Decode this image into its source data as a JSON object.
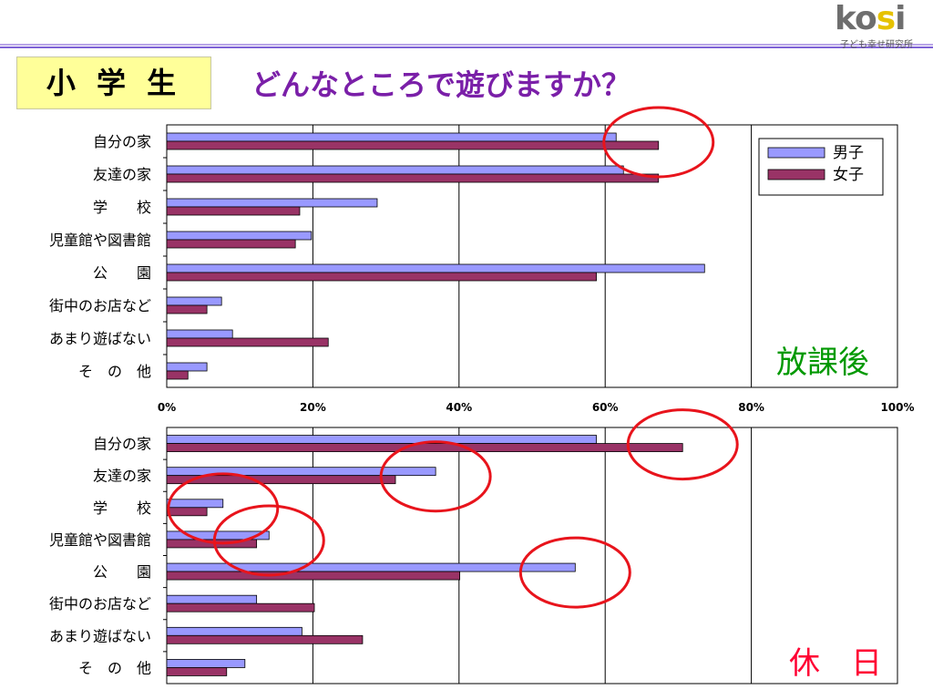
{
  "logo": {
    "text_main_a": "ko",
    "text_main_s": "s",
    "text_main_b": "i",
    "subtitle": "子ども幸せ研究所"
  },
  "grade_label": "小 学 生",
  "question": "どんなところで遊びますか？",
  "colors": {
    "boys": "#9999ff",
    "girls": "#993366",
    "highlight_circle": "#e8141c"
  },
  "chart_data": [
    {
      "type": "bar",
      "orientation": "horizontal",
      "panel_label": "放課後",
      "categories": [
        "自分の家",
        "友達の家",
        "学　　校",
        "児童館や図書館",
        "公　　園",
        "街中のお店など",
        "あまり遊ばない",
        "そ　の　他"
      ],
      "series": [
        {
          "name": "男子",
          "values": [
            61.5,
            62.5,
            28.8,
            19.8,
            73.6,
            7.5,
            9.0,
            5.5
          ]
        },
        {
          "name": "女子",
          "values": [
            67.3,
            67.3,
            18.2,
            17.6,
            58.8,
            5.5,
            22.1,
            2.9
          ]
        }
      ],
      "xlim": [
        0,
        100
      ],
      "xticks": [
        "0%",
        "20%",
        "40%",
        "60%",
        "80%",
        "100%"
      ],
      "legend": "top-right",
      "highlighted_categories": [
        "自分の家"
      ]
    },
    {
      "type": "bar",
      "orientation": "horizontal",
      "panel_label": "休　日",
      "categories": [
        "自分の家",
        "友達の家",
        "学　　校",
        "児童館や図書館",
        "公　　園",
        "街中のお店など",
        "あまり遊ばない",
        "そ　の　他"
      ],
      "series": [
        {
          "name": "男子",
          "values": [
            58.8,
            36.8,
            7.7,
            14.0,
            55.9,
            12.3,
            18.5,
            10.7
          ]
        },
        {
          "name": "女子",
          "values": [
            70.6,
            31.3,
            5.5,
            12.3,
            40.1,
            20.2,
            26.8,
            8.2
          ]
        }
      ],
      "xlim": [
        0,
        100
      ],
      "highlighted_categories": [
        "自分の家",
        "友達の家",
        "学　　校",
        "児童館や図書館",
        "公　　園"
      ]
    }
  ]
}
